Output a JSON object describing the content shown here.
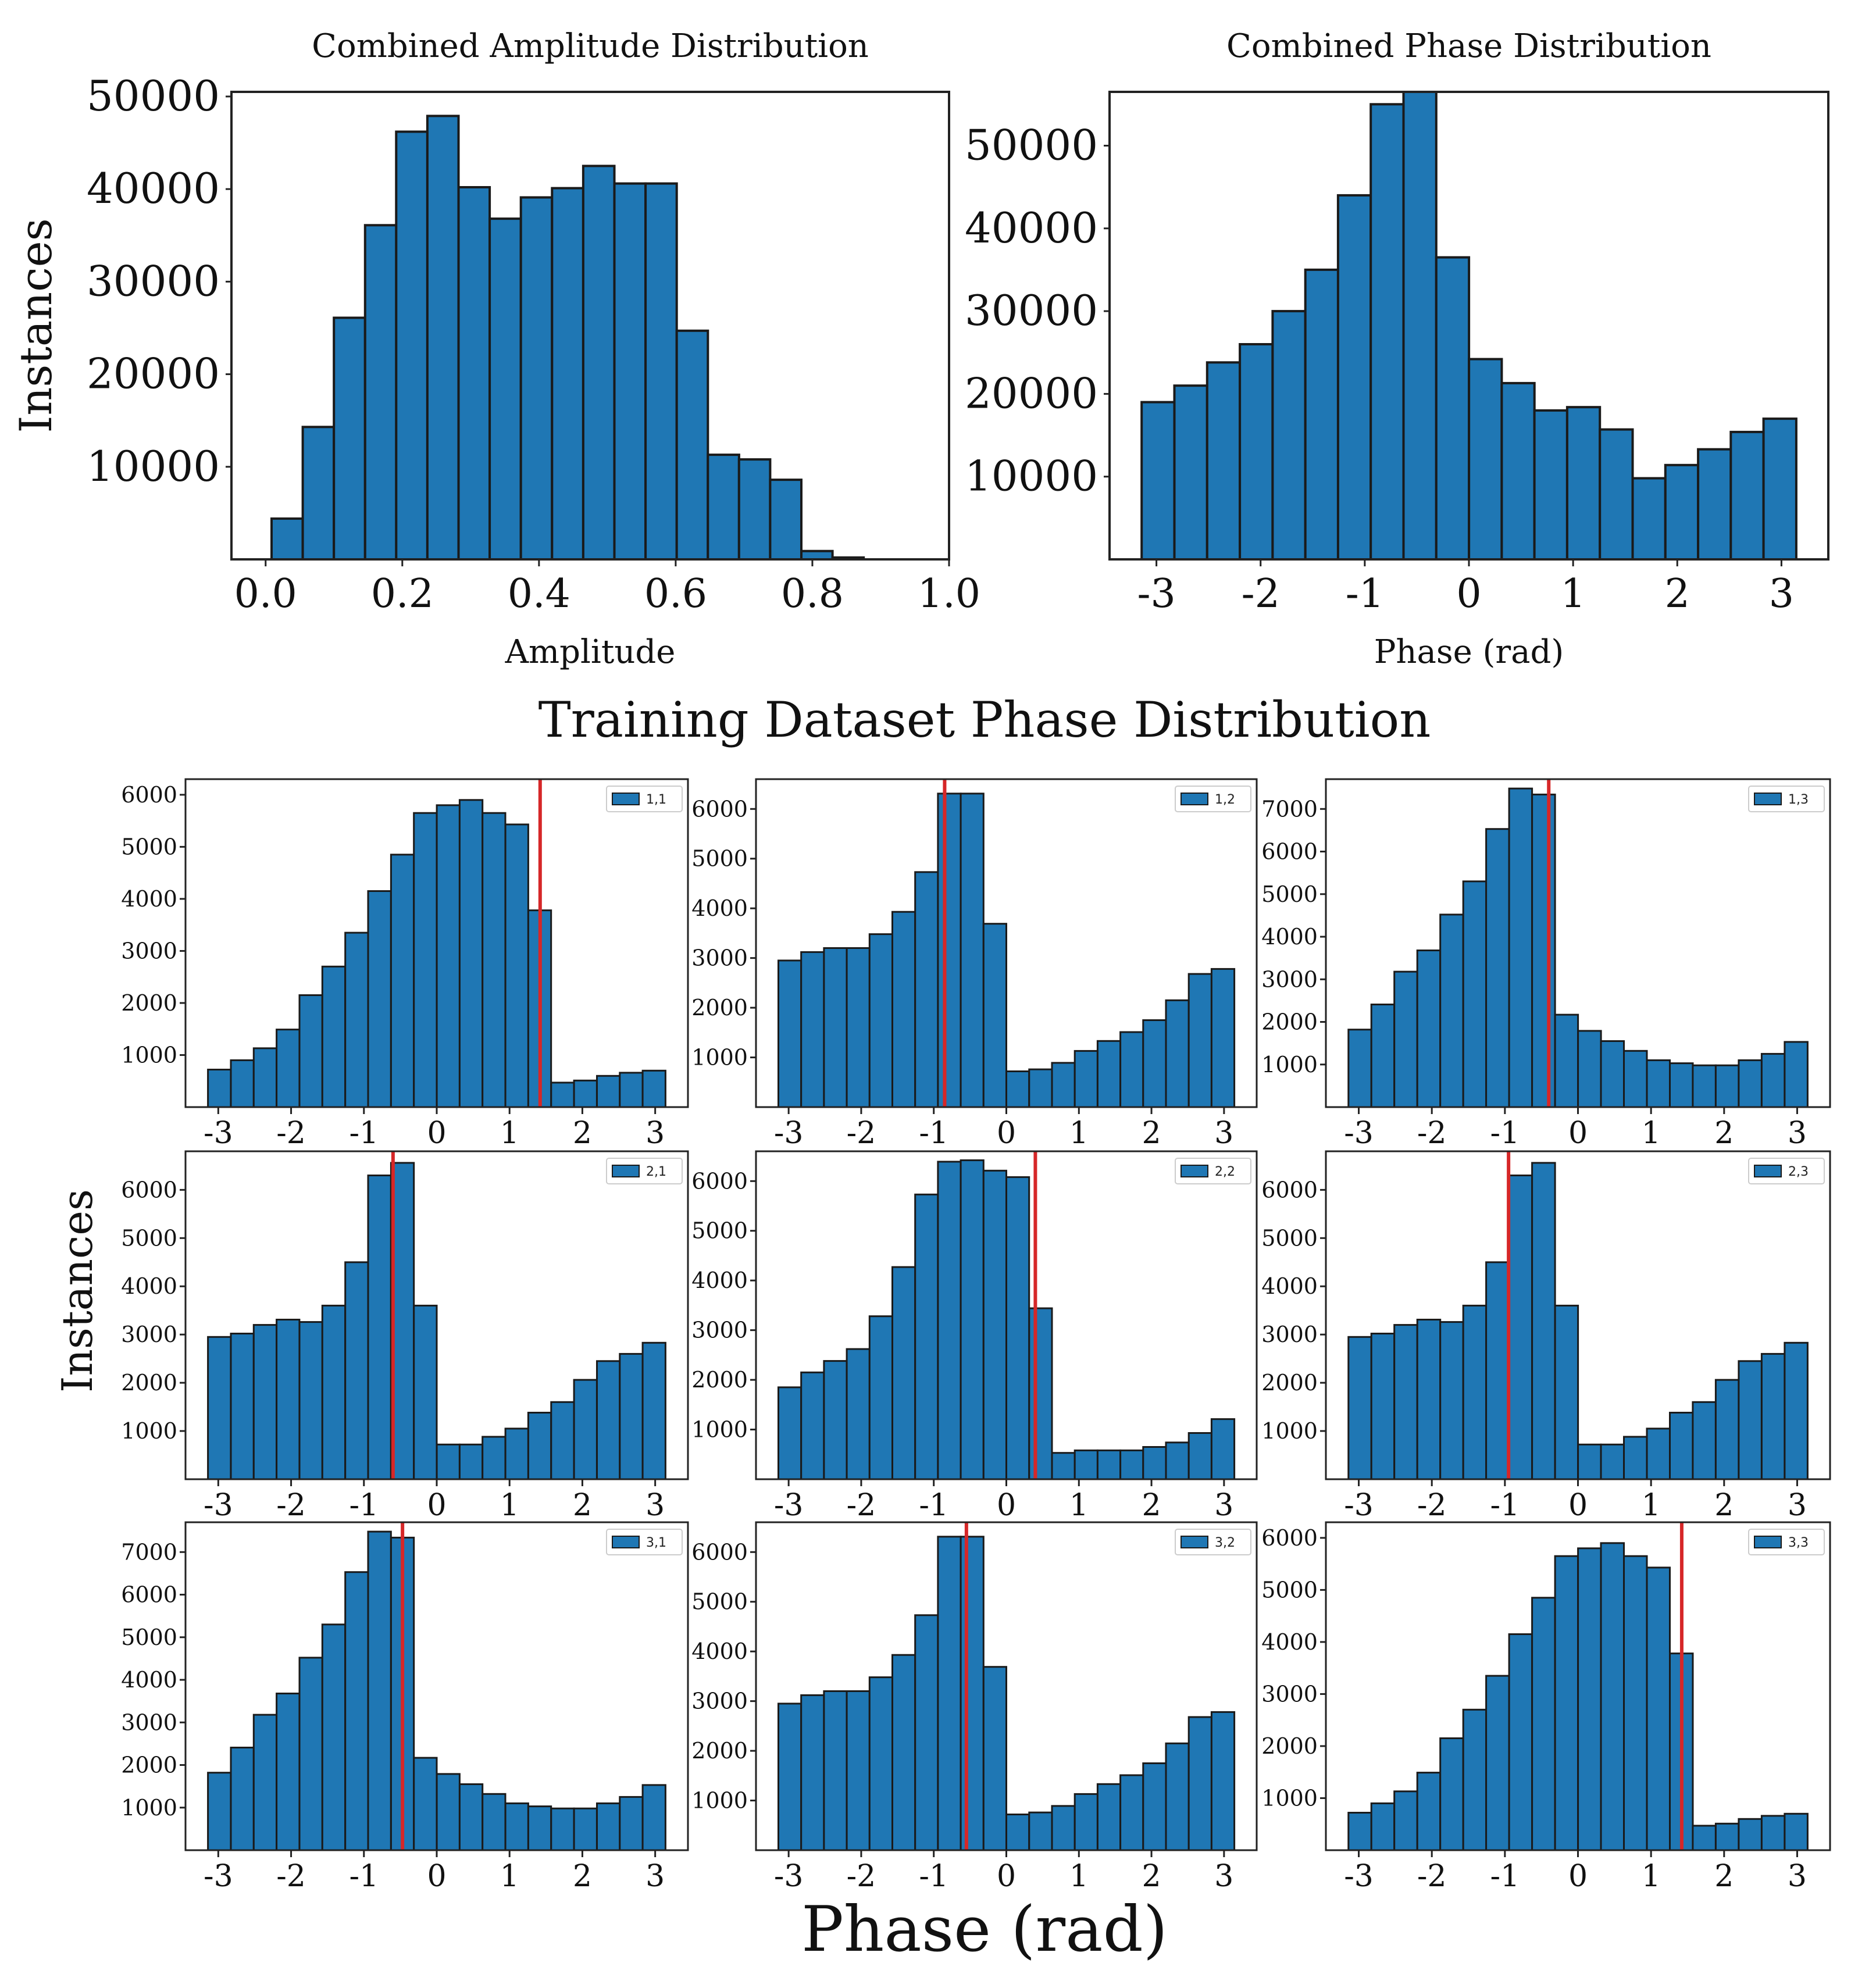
{
  "figure": {
    "training_title": "Training Dataset Phase Distribution",
    "training_ylabel": "Instances",
    "training_xlabel": "Phase (rad)"
  },
  "colors": {
    "bar": "#1f77b4",
    "edge": "#1a1a1a",
    "marker": "#d62728",
    "axes": "#222222"
  },
  "chart_data": [
    {
      "id": "amp",
      "type": "bar",
      "title": "Combined Amplitude Distribution",
      "xlabel": "Amplitude",
      "ylabel": "Instances",
      "xlim": [
        -0.05,
        1.0
      ],
      "ylim": [
        0,
        50500
      ],
      "xticks": [
        0.0,
        0.2,
        0.4,
        0.6,
        0.8,
        1.0
      ],
      "xtick_labels": [
        "0.0",
        "0.2",
        "0.4",
        "0.6",
        "0.8",
        "1.0"
      ],
      "yticks": [
        10000,
        20000,
        30000,
        40000,
        50000
      ],
      "ytick_labels": [
        "10000",
        "20000",
        "30000",
        "40000",
        "50000"
      ],
      "bin_start": 0.0087,
      "bin_width": 0.0456,
      "values": [
        4400,
        14300,
        26100,
        36100,
        46200,
        47900,
        40200,
        36800,
        39100,
        40100,
        42500,
        40600,
        40600,
        24700,
        11300,
        10800,
        8600,
        900,
        200
      ]
    },
    {
      "id": "phase_all",
      "type": "bar",
      "title": "Combined Phase Distribution",
      "xlabel": "Phase (rad)",
      "ylabel": "",
      "xlim": [
        -3.45,
        3.45
      ],
      "ylim": [
        0,
        56500
      ],
      "xticks": [
        -3,
        -2,
        -1,
        0,
        1,
        2,
        3
      ],
      "xtick_labels": [
        "-3",
        "-2",
        "-1",
        "0",
        "1",
        "2",
        "3"
      ],
      "yticks": [
        10000,
        20000,
        30000,
        40000,
        50000
      ],
      "ytick_labels": [
        "10000",
        "20000",
        "30000",
        "40000",
        "50000"
      ],
      "bin_start": -3.1416,
      "bin_width": 0.3142,
      "values": [
        19000,
        21000,
        23800,
        26000,
        30000,
        35000,
        44000,
        55000,
        56500,
        36500,
        24200,
        21300,
        18000,
        18400,
        15700,
        9800,
        11400,
        13300,
        15400,
        17000
      ]
    },
    {
      "id": "t11",
      "type": "bar",
      "legend": "1,1",
      "xlim": [
        -3.45,
        3.45
      ],
      "ylim": [
        0,
        6300
      ],
      "xticks": [
        -3,
        -2,
        -1,
        0,
        1,
        2,
        3
      ],
      "xtick_labels": [
        "-3",
        "-2",
        "-1",
        "0",
        "1",
        "2",
        "3"
      ],
      "yticks": [
        1000,
        2000,
        3000,
        4000,
        5000,
        6000
      ],
      "ytick_labels": [
        "1000",
        "2000",
        "3000",
        "4000",
        "5000",
        "6000"
      ],
      "bin_start": -3.1416,
      "bin_width": 0.3142,
      "marker_x": 1.42,
      "values": [
        720,
        900,
        1130,
        1490,
        2150,
        2700,
        3350,
        4150,
        4850,
        5650,
        5800,
        5900,
        5650,
        5430,
        3780,
        470,
        510,
        600,
        660,
        700
      ]
    },
    {
      "id": "t12",
      "type": "bar",
      "legend": "1,2",
      "xlim": [
        -3.45,
        3.45
      ],
      "ylim": [
        0,
        6600
      ],
      "xticks": [
        -3,
        -2,
        -1,
        0,
        1,
        2,
        3
      ],
      "xtick_labels": [
        "-3",
        "-2",
        "-1",
        "0",
        "1",
        "2",
        "3"
      ],
      "yticks": [
        1000,
        2000,
        3000,
        4000,
        5000,
        6000
      ],
      "ytick_labels": [
        "1000",
        "2000",
        "3000",
        "4000",
        "5000",
        "6000"
      ],
      "bin_start": -3.1416,
      "bin_width": 0.3142,
      "marker_x": -0.85,
      "values": [
        2950,
        3120,
        3200,
        3200,
        3480,
        3930,
        4730,
        6310,
        6310,
        3690,
        720,
        760,
        890,
        1130,
        1330,
        1510,
        1750,
        2150,
        2680,
        2780
      ]
    },
    {
      "id": "t13",
      "type": "bar",
      "legend": "1,3",
      "xlim": [
        -3.45,
        3.45
      ],
      "ylim": [
        0,
        7700
      ],
      "xticks": [
        -3,
        -2,
        -1,
        0,
        1,
        2,
        3
      ],
      "xtick_labels": [
        "-3",
        "-2",
        "-1",
        "0",
        "1",
        "2",
        "3"
      ],
      "yticks": [
        1000,
        2000,
        3000,
        4000,
        5000,
        6000,
        7000
      ],
      "ytick_labels": [
        "1000",
        "2000",
        "3000",
        "4000",
        "5000",
        "6000",
        "7000"
      ],
      "bin_start": -3.1416,
      "bin_width": 0.3142,
      "marker_x": -0.4,
      "values": [
        1820,
        2410,
        3180,
        3680,
        4520,
        5300,
        6530,
        7480,
        7340,
        2170,
        1790,
        1550,
        1320,
        1100,
        1030,
        980,
        980,
        1100,
        1250,
        1530
      ]
    },
    {
      "id": "t21",
      "type": "bar",
      "legend": "2,1",
      "xlim": [
        -3.45,
        3.45
      ],
      "ylim": [
        0,
        6800
      ],
      "xticks": [
        -3,
        -2,
        -1,
        0,
        1,
        2,
        3
      ],
      "xtick_labels": [
        "-3",
        "-2",
        "-1",
        "0",
        "1",
        "2",
        "3"
      ],
      "yticks": [
        1000,
        2000,
        3000,
        4000,
        5000,
        6000
      ],
      "ytick_labels": [
        "1000",
        "2000",
        "3000",
        "4000",
        "5000",
        "6000"
      ],
      "bin_start": -3.1416,
      "bin_width": 0.3142,
      "marker_x": -0.6,
      "values": [
        2950,
        3020,
        3200,
        3310,
        3260,
        3600,
        4500,
        6300,
        6560,
        3600,
        720,
        720,
        880,
        1050,
        1380,
        1600,
        2060,
        2450,
        2600,
        2830
      ]
    },
    {
      "id": "t22",
      "type": "bar",
      "legend": "2,2",
      "xlim": [
        -3.45,
        3.45
      ],
      "ylim": [
        0,
        6600
      ],
      "xticks": [
        -3,
        -2,
        -1,
        0,
        1,
        2,
        3
      ],
      "xtick_labels": [
        "-3",
        "-2",
        "-1",
        "0",
        "1",
        "2",
        "3"
      ],
      "yticks": [
        1000,
        2000,
        3000,
        4000,
        5000,
        6000
      ],
      "ytick_labels": [
        "1000",
        "2000",
        "3000",
        "4000",
        "5000",
        "6000"
      ],
      "bin_start": -3.1416,
      "bin_width": 0.3142,
      "marker_x": 0.4,
      "values": [
        1850,
        2150,
        2380,
        2620,
        3280,
        4270,
        5730,
        6390,
        6420,
        6210,
        6080,
        3440,
        530,
        580,
        580,
        580,
        650,
        740,
        930,
        1210
      ]
    },
    {
      "id": "t23",
      "type": "bar",
      "legend": "2,3",
      "xlim": [
        -3.45,
        3.45
      ],
      "ylim": [
        0,
        6800
      ],
      "xticks": [
        -3,
        -2,
        -1,
        0,
        1,
        2,
        3
      ],
      "xtick_labels": [
        "-3",
        "-2",
        "-1",
        "0",
        "1",
        "2",
        "3"
      ],
      "yticks": [
        1000,
        2000,
        3000,
        4000,
        5000,
        6000
      ],
      "ytick_labels": [
        "1000",
        "2000",
        "3000",
        "4000",
        "5000",
        "6000"
      ],
      "bin_start": -3.1416,
      "bin_width": 0.3142,
      "marker_x": -0.95,
      "values": [
        2950,
        3020,
        3200,
        3310,
        3260,
        3600,
        4500,
        6300,
        6560,
        3600,
        720,
        720,
        880,
        1050,
        1380,
        1600,
        2060,
        2450,
        2600,
        2830
      ]
    },
    {
      "id": "t31",
      "type": "bar",
      "legend": "3,1",
      "xlim": [
        -3.45,
        3.45
      ],
      "ylim": [
        0,
        7700
      ],
      "xticks": [
        -3,
        -2,
        -1,
        0,
        1,
        2,
        3
      ],
      "xtick_labels": [
        "-3",
        "-2",
        "-1",
        "0",
        "1",
        "2",
        "3"
      ],
      "yticks": [
        1000,
        2000,
        3000,
        4000,
        5000,
        6000,
        7000
      ],
      "ytick_labels": [
        "1000",
        "2000",
        "3000",
        "4000",
        "5000",
        "6000",
        "7000"
      ],
      "bin_start": -3.1416,
      "bin_width": 0.3142,
      "marker_x": -0.47,
      "values": [
        1820,
        2410,
        3180,
        3680,
        4520,
        5300,
        6530,
        7480,
        7340,
        2170,
        1790,
        1550,
        1320,
        1100,
        1030,
        980,
        980,
        1100,
        1250,
        1530
      ]
    },
    {
      "id": "t32",
      "type": "bar",
      "legend": "3,2",
      "xlim": [
        -3.45,
        3.45
      ],
      "ylim": [
        0,
        6600
      ],
      "xticks": [
        -3,
        -2,
        -1,
        0,
        1,
        2,
        3
      ],
      "xtick_labels": [
        "-3",
        "-2",
        "-1",
        "0",
        "1",
        "2",
        "3"
      ],
      "yticks": [
        1000,
        2000,
        3000,
        4000,
        5000,
        6000
      ],
      "ytick_labels": [
        "1000",
        "2000",
        "3000",
        "4000",
        "5000",
        "6000"
      ],
      "bin_start": -3.1416,
      "bin_width": 0.3142,
      "marker_x": -0.55,
      "values": [
        2950,
        3120,
        3200,
        3200,
        3480,
        3930,
        4730,
        6310,
        6310,
        3690,
        720,
        760,
        890,
        1130,
        1330,
        1510,
        1750,
        2150,
        2680,
        2780
      ]
    },
    {
      "id": "t33",
      "type": "bar",
      "legend": "3,3",
      "xlim": [
        -3.45,
        3.45
      ],
      "ylim": [
        0,
        6300
      ],
      "xticks": [
        -3,
        -2,
        -1,
        0,
        1,
        2,
        3
      ],
      "xtick_labels": [
        "-3",
        "-2",
        "-1",
        "0",
        "1",
        "2",
        "3"
      ],
      "yticks": [
        1000,
        2000,
        3000,
        4000,
        5000,
        6000
      ],
      "ytick_labels": [
        "1000",
        "2000",
        "3000",
        "4000",
        "5000",
        "6000"
      ],
      "bin_start": -3.1416,
      "bin_width": 0.3142,
      "marker_x": 1.42,
      "values": [
        720,
        900,
        1130,
        1490,
        2150,
        2700,
        3350,
        4150,
        4850,
        5650,
        5800,
        5900,
        5650,
        5430,
        3780,
        470,
        510,
        600,
        660,
        700
      ]
    }
  ]
}
